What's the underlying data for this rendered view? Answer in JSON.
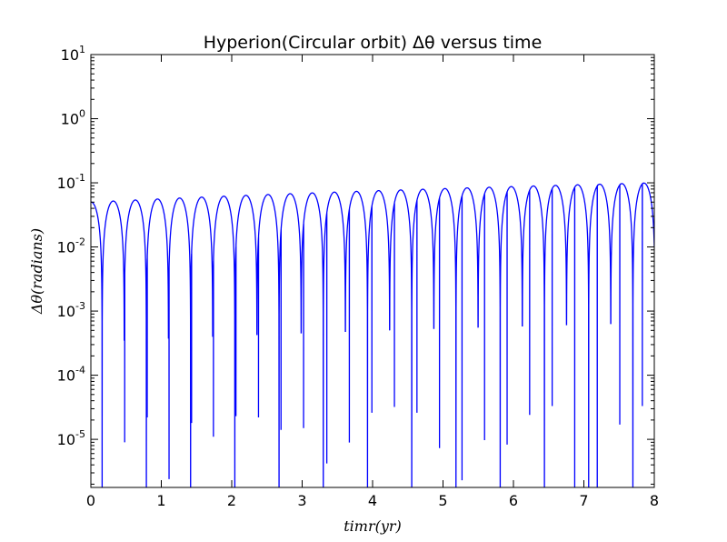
{
  "chart_data": {
    "type": "line",
    "title": "Hyperion(Circular orbit) Δθ versus time",
    "xlabel": "timr(yr)",
    "ylabel": "Δθ(radians)",
    "xlim": [
      0,
      8
    ],
    "ylim_exponent": [
      -5.75,
      1
    ],
    "yscale": "log",
    "grid": false,
    "x_ticks": [
      "0",
      "1",
      "2",
      "3",
      "4",
      "5",
      "6",
      "7",
      "8"
    ],
    "y_ticks": [
      {
        "base": "10",
        "exp": "-5"
      },
      {
        "base": "10",
        "exp": "-4"
      },
      {
        "base": "10",
        "exp": "-3"
      },
      {
        "base": "10",
        "exp": "-2"
      },
      {
        "base": "10",
        "exp": "-1"
      },
      {
        "base": "10",
        "exp": "0"
      },
      {
        "base": "10",
        "exp": "1"
      }
    ],
    "series": [
      {
        "color": "#0000ff",
        "period_yr": 0.314,
        "first_minimum_yr": 0.16,
        "amplitude_start": 0.05,
        "amplitude_end": 0.1,
        "minima": [
          {
            "x": 0.16,
            "y": 7.8e-06
          },
          {
            "x": 0.48,
            "y": 9e-06
          },
          {
            "x": 0.8,
            "y": 2.2e-05
          },
          {
            "x": 1.11,
            "y": 2.4e-06
          },
          {
            "x": 1.43,
            "y": 1.8e-05
          },
          {
            "x": 1.74,
            "y": 1.1e-05
          },
          {
            "x": 2.06,
            "y": 2.3e-05
          },
          {
            "x": 2.38,
            "y": 2.2e-05
          },
          {
            "x": 2.7,
            "y": 1.4e-05
          },
          {
            "x": 3.02,
            "y": 1.5e-05
          },
          {
            "x": 3.35,
            "y": 4.2e-06
          },
          {
            "x": 3.67,
            "y": 8.9e-06
          },
          {
            "x": 3.99,
            "y": 2.6e-05
          },
          {
            "x": 4.31,
            "y": 3.2e-05
          },
          {
            "x": 4.63,
            "y": 2.6e-05
          },
          {
            "x": 4.95,
            "y": 7.3e-06
          },
          {
            "x": 5.27,
            "y": 2.3e-06
          },
          {
            "x": 5.59,
            "y": 9.7e-06
          },
          {
            "x": 5.91,
            "y": 8.3e-06
          },
          {
            "x": 6.23,
            "y": 2.4e-05
          },
          {
            "x": 6.55,
            "y": 3.3e-05
          },
          {
            "x": 6.87,
            "y": 1e-06
          },
          {
            "x": 7.19,
            "y": 1e-06
          },
          {
            "x": 7.51,
            "y": 1.7e-05
          },
          {
            "x": 7.83,
            "y": 3.3e-05
          }
        ]
      }
    ]
  }
}
